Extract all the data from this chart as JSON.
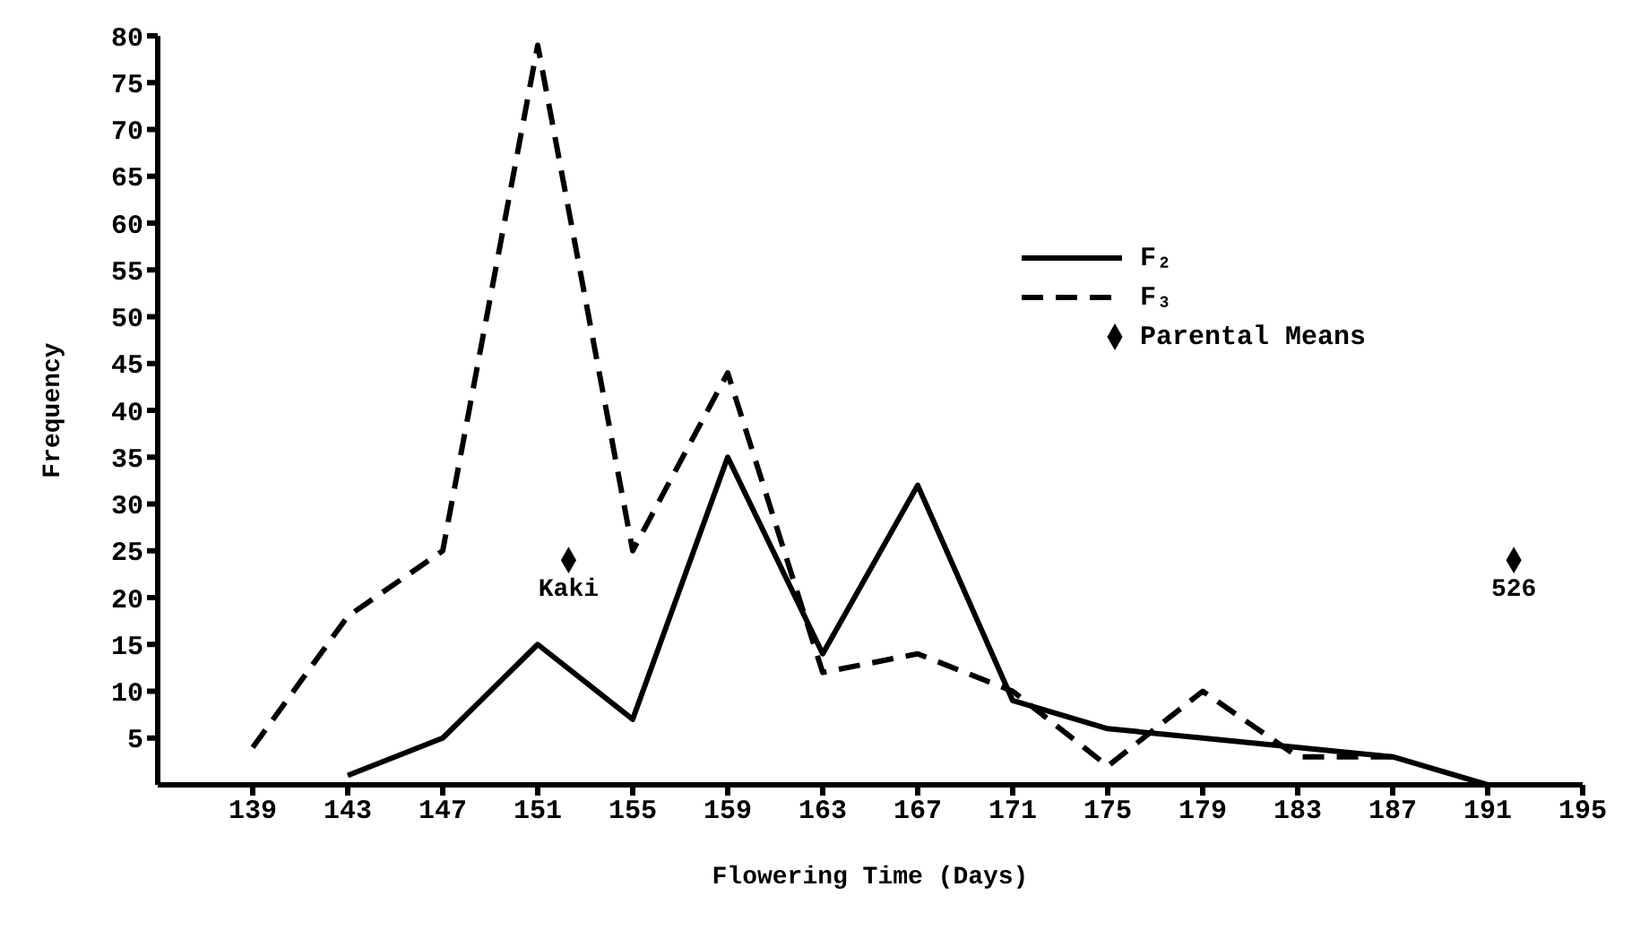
{
  "chart_data": {
    "type": "line",
    "xlabel": "Flowering Time (Days)",
    "ylabel": "Frequency",
    "xlim": [
      135,
      195
    ],
    "xticks": [
      139,
      143,
      147,
      151,
      155,
      159,
      163,
      167,
      171,
      175,
      179,
      183,
      187,
      191,
      195
    ],
    "ylim": [
      0,
      80
    ],
    "yticks": [
      5,
      10,
      15,
      20,
      25,
      30,
      35,
      40,
      45,
      50,
      55,
      60,
      65,
      70,
      75,
      80
    ],
    "grid": false,
    "legend": "top right",
    "marker": "none",
    "series": [
      {
        "name": "F₂",
        "color": "#000000",
        "line_style": "solid",
        "x": [
          143,
          147,
          151,
          155,
          159,
          163,
          167,
          171,
          175,
          179,
          183,
          187,
          191
        ],
        "values": [
          1,
          5,
          15,
          7,
          35,
          14,
          32,
          9,
          6,
          5,
          4,
          3,
          0
        ]
      },
      {
        "name": "F₃",
        "color": "#000000",
        "line_style": "dashed",
        "x": [
          139,
          143,
          147,
          151,
          155,
          159,
          163,
          167,
          171,
          175,
          179,
          183,
          187
        ],
        "values": [
          4,
          18,
          25,
          79,
          25,
          44,
          12,
          14,
          10,
          2,
          10,
          3,
          3
        ]
      },
      {
        "name": "Parental Means",
        "type": "scatter",
        "marker": "diamond",
        "color": "#000000",
        "x": [
          152.3,
          192.1
        ],
        "values": [
          24,
          24
        ]
      }
    ],
    "annotations": [
      {
        "text": "Kaki",
        "x": 152.3,
        "y": 24
      },
      {
        "text": "526",
        "x": 192.1,
        "y": 24
      }
    ]
  }
}
